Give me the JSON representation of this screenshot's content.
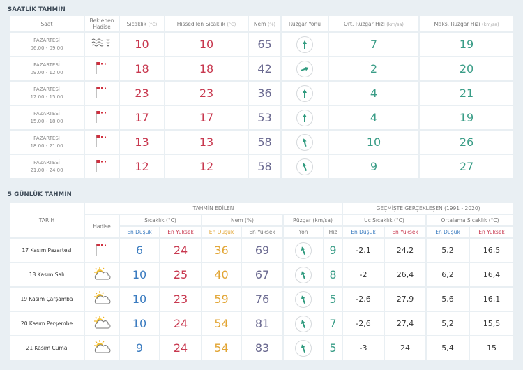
{
  "hourly": {
    "title": "SAATLİK TAHMİN",
    "headers": {
      "saat": "Saat",
      "hadise": "Beklenen Hadise",
      "sicaklik": "Sıcaklık",
      "sicaklik_unit": "(°C)",
      "hissedilen": "Hissedilen Sıcaklık",
      "hissedilen_unit": "(°C)",
      "nem": "Nem",
      "nem_unit": "(%)",
      "yon": "Rüzgar Yönü",
      "ort": "Ort. Rüzgar Hızı",
      "ort_unit": "(km/sa)",
      "maks": "Maks. Rüzgar Hızı",
      "maks_unit": "(km/sa)"
    },
    "rows": [
      {
        "day": "PAZARTESİ",
        "time": "06.00 - 09.00",
        "icon": "fog-icon",
        "temp": "10",
        "feels": "10",
        "humidity": "65",
        "wind_dir_deg": 0,
        "avg_wind": "7",
        "max_wind": "19"
      },
      {
        "day": "PAZARTESİ",
        "time": "09.00 - 12.00",
        "icon": "wind-flag-icon",
        "temp": "18",
        "feels": "18",
        "humidity": "42",
        "wind_dir_deg": 70,
        "avg_wind": "2",
        "max_wind": "20"
      },
      {
        "day": "PAZARTESİ",
        "time": "12.00 - 15.00",
        "icon": "wind-flag-icon",
        "temp": "23",
        "feels": "23",
        "humidity": "36",
        "wind_dir_deg": 0,
        "avg_wind": "4",
        "max_wind": "21"
      },
      {
        "day": "PAZARTESİ",
        "time": "15.00 - 18.00",
        "icon": "wind-flag-icon",
        "temp": "17",
        "feels": "17",
        "humidity": "53",
        "wind_dir_deg": 0,
        "avg_wind": "4",
        "max_wind": "19"
      },
      {
        "day": "PAZARTESİ",
        "time": "18.00 - 21.00",
        "icon": "wind-flag-icon",
        "temp": "13",
        "feels": "13",
        "humidity": "58",
        "wind_dir_deg": -15,
        "avg_wind": "10",
        "max_wind": "26"
      },
      {
        "day": "PAZARTESİ",
        "time": "21.00 - 24.00",
        "icon": "wind-flag-icon",
        "temp": "12",
        "feels": "12",
        "humidity": "58",
        "wind_dir_deg": -20,
        "avg_wind": "9",
        "max_wind": "27"
      }
    ]
  },
  "daily": {
    "title": "5 GÜNLÜK TAHMİN",
    "headers": {
      "tarih": "TARİH",
      "tahmin": "TAHMİN EDİLEN",
      "gecmis": "GEÇMİŞTE GERÇEKLEŞEN (1991 - 2020)",
      "hadise": "Hadise",
      "sicaklik": "Sıcaklık (°C)",
      "nem": "Nem (%)",
      "ruzgar": "Rüzgar (km/sa)",
      "uc": "Uç Sıcaklık (°C)",
      "ortalama": "Ortalama Sıcaklık (°C)",
      "en_dusuk": "En Düşük",
      "en_yuksek": "En Yüksek",
      "yon": "Yön",
      "hiz": "Hız"
    },
    "rows": [
      {
        "date": "17 Kasım Pazartesi",
        "icon": "wind-flag-icon",
        "tmin": "6",
        "tmax": "24",
        "hmin": "36",
        "hmax": "69",
        "wind_dir_deg": -20,
        "wind": "9",
        "uc_min": "-2,1",
        "uc_max": "24,2",
        "ort_min": "5,2",
        "ort_max": "16,5"
      },
      {
        "date": "18 Kasım Salı",
        "icon": "partly-cloudy-icon",
        "tmin": "10",
        "tmax": "25",
        "hmin": "40",
        "hmax": "67",
        "wind_dir_deg": -20,
        "wind": "8",
        "uc_min": "-2",
        "uc_max": "26,4",
        "ort_min": "6,2",
        "ort_max": "16,4"
      },
      {
        "date": "19 Kasım Çarşamba",
        "icon": "partly-cloudy-icon",
        "tmin": "10",
        "tmax": "23",
        "hmin": "59",
        "hmax": "76",
        "wind_dir_deg": -20,
        "wind": "5",
        "uc_min": "-2,6",
        "uc_max": "27,9",
        "ort_min": "5,6",
        "ort_max": "16,1"
      },
      {
        "date": "20 Kasım Perşembe",
        "icon": "partly-cloudy-icon",
        "tmin": "10",
        "tmax": "24",
        "hmin": "54",
        "hmax": "81",
        "wind_dir_deg": -20,
        "wind": "7",
        "uc_min": "-2,6",
        "uc_max": "27,4",
        "ort_min": "5,2",
        "ort_max": "15,5"
      },
      {
        "date": "21 Kasım Cuma",
        "icon": "partly-cloudy-icon",
        "tmin": "9",
        "tmax": "24",
        "hmin": "54",
        "hmax": "83",
        "wind_dir_deg": -20,
        "wind": "5",
        "uc_min": "-3",
        "uc_max": "24",
        "ort_min": "5,4",
        "ort_max": "15"
      }
    ]
  }
}
